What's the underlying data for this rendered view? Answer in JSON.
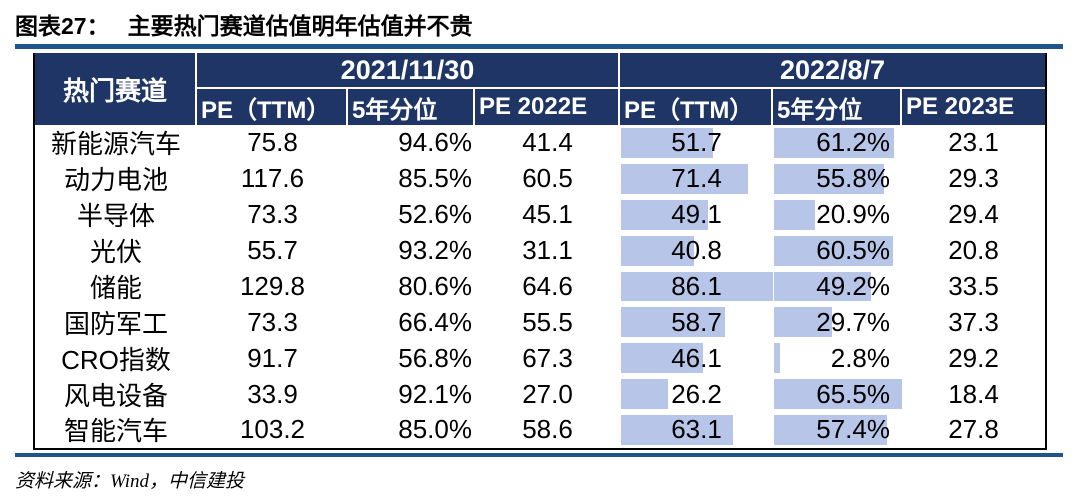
{
  "title": {
    "prefix": "图表27：",
    "text": "主要热门赛道估值明年估值并不贵"
  },
  "source": "资料来源：Wind，中信建投",
  "colors": {
    "header_bg": "#1E3566",
    "header_text": "#FFFFFF",
    "bar_fill": "#B7C5E8",
    "rule_blue": "#20548C",
    "table_border": "#000000"
  },
  "chart_data": {
    "type": "table",
    "title": "主要热门赛道估值明年估值并不贵",
    "corner_header": "热门赛道",
    "group_headers": [
      {
        "label": "2021/11/30",
        "span": 3
      },
      {
        "label": "2022/8/7",
        "span": 3
      }
    ],
    "sub_headers": [
      "PE（TTM）",
      "5年分位",
      "PE 2022E",
      "PE（TTM）",
      "5年分位",
      "PE 2023E"
    ],
    "rows": [
      {
        "sector": "新能源汽车",
        "cells": [
          "75.8",
          "94.6%",
          "41.4",
          "51.7",
          "61.2%",
          "23.1"
        ]
      },
      {
        "sector": "动力电池",
        "cells": [
          "117.6",
          "85.5%",
          "60.5",
          "71.4",
          "55.8%",
          "29.3"
        ]
      },
      {
        "sector": "半导体",
        "cells": [
          "73.3",
          "52.6%",
          "45.1",
          "49.1",
          "20.9%",
          "29.4"
        ]
      },
      {
        "sector": "光伏",
        "cells": [
          "55.7",
          "93.2%",
          "31.1",
          "40.8",
          "60.5%",
          "20.8"
        ]
      },
      {
        "sector": "储能",
        "cells": [
          "129.8",
          "80.6%",
          "64.6",
          "86.1",
          "49.2%",
          "33.5"
        ]
      },
      {
        "sector": "国防军工",
        "cells": [
          "73.3",
          "66.4%",
          "55.5",
          "58.7",
          "29.7%",
          "37.3"
        ]
      },
      {
        "sector": "CRO指数",
        "cells": [
          "91.7",
          "56.8%",
          "67.3",
          "46.1",
          "2.8%",
          "29.2"
        ]
      },
      {
        "sector": "风电设备",
        "cells": [
          "33.9",
          "92.1%",
          "27.0",
          "26.2",
          "65.5%",
          "18.4"
        ]
      },
      {
        "sector": "智能汽车",
        "cells": [
          "103.2",
          "85.0%",
          "58.6",
          "63.1",
          "57.4%",
          "27.8"
        ]
      }
    ],
    "data_bars": {
      "cell_columns": [
        3,
        4
      ],
      "color": "#B7C5E8",
      "note": "bar length proportional to value divided by column maximum"
    }
  }
}
